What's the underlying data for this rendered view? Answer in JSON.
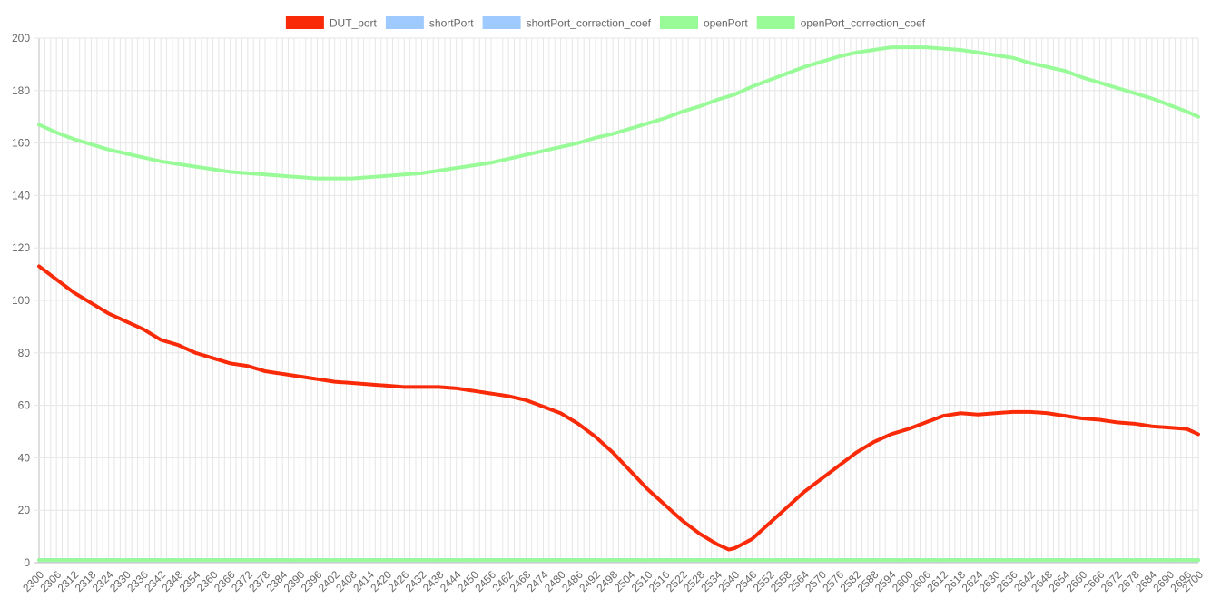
{
  "chart_data": {
    "type": "line",
    "x": {
      "start": 2300,
      "end": 2700,
      "step": 1,
      "tick_step": 6
    },
    "ylim": [
      0,
      200
    ],
    "y_ticks": [
      0,
      20,
      40,
      60,
      80,
      100,
      120,
      140,
      160,
      180,
      200
    ],
    "grid": true,
    "legend_position": "top",
    "series": [
      {
        "name": "DUT_port",
        "color": "#f92a07",
        "knots": [
          [
            2300,
            113
          ],
          [
            2306,
            108
          ],
          [
            2312,
            103
          ],
          [
            2318,
            99
          ],
          [
            2324,
            95
          ],
          [
            2330,
            92
          ],
          [
            2336,
            89
          ],
          [
            2342,
            85
          ],
          [
            2348,
            83
          ],
          [
            2354,
            80
          ],
          [
            2360,
            78
          ],
          [
            2366,
            76
          ],
          [
            2372,
            75
          ],
          [
            2378,
            73
          ],
          [
            2384,
            72
          ],
          [
            2390,
            71
          ],
          [
            2396,
            70
          ],
          [
            2402,
            69
          ],
          [
            2408,
            68.5
          ],
          [
            2414,
            68
          ],
          [
            2420,
            67.5
          ],
          [
            2426,
            67
          ],
          [
            2432,
            67
          ],
          [
            2438,
            67
          ],
          [
            2444,
            66.5
          ],
          [
            2450,
            65.5
          ],
          [
            2456,
            64.5
          ],
          [
            2462,
            63.5
          ],
          [
            2468,
            62
          ],
          [
            2474,
            59.5
          ],
          [
            2480,
            57
          ],
          [
            2486,
            53
          ],
          [
            2492,
            48
          ],
          [
            2498,
            42
          ],
          [
            2504,
            35
          ],
          [
            2510,
            28
          ],
          [
            2516,
            22
          ],
          [
            2522,
            16
          ],
          [
            2528,
            11
          ],
          [
            2534,
            7
          ],
          [
            2538,
            5
          ],
          [
            2540,
            5.5
          ],
          [
            2546,
            9
          ],
          [
            2552,
            15
          ],
          [
            2558,
            21
          ],
          [
            2564,
            27
          ],
          [
            2570,
            32
          ],
          [
            2576,
            37
          ],
          [
            2582,
            42
          ],
          [
            2588,
            46
          ],
          [
            2594,
            49
          ],
          [
            2600,
            51
          ],
          [
            2606,
            53.5
          ],
          [
            2612,
            56
          ],
          [
            2618,
            57
          ],
          [
            2624,
            56.5
          ],
          [
            2630,
            57
          ],
          [
            2636,
            57.5
          ],
          [
            2642,
            57.5
          ],
          [
            2648,
            57
          ],
          [
            2654,
            56
          ],
          [
            2660,
            55
          ],
          [
            2666,
            54.5
          ],
          [
            2672,
            53.5
          ],
          [
            2678,
            53
          ],
          [
            2684,
            52
          ],
          [
            2690,
            51.5
          ],
          [
            2696,
            51
          ],
          [
            2700,
            49
          ]
        ]
      },
      {
        "name": "shortPort",
        "color": "#9ecaff",
        "constant": 1
      },
      {
        "name": "shortPort_correction_coef",
        "color": "#9ecaff",
        "constant": 1
      },
      {
        "name": "openPort",
        "color": "#98fb98",
        "knots": [
          [
            2300,
            167
          ],
          [
            2306,
            164
          ],
          [
            2312,
            161.5
          ],
          [
            2318,
            159.5
          ],
          [
            2324,
            157.5
          ],
          [
            2330,
            156
          ],
          [
            2336,
            154.5
          ],
          [
            2342,
            153
          ],
          [
            2348,
            152
          ],
          [
            2354,
            151
          ],
          [
            2360,
            150
          ],
          [
            2366,
            149
          ],
          [
            2372,
            148.5
          ],
          [
            2378,
            148
          ],
          [
            2384,
            147.5
          ],
          [
            2390,
            147
          ],
          [
            2396,
            146.5
          ],
          [
            2402,
            146.5
          ],
          [
            2408,
            146.5
          ],
          [
            2414,
            147
          ],
          [
            2420,
            147.5
          ],
          [
            2426,
            148
          ],
          [
            2432,
            148.5
          ],
          [
            2438,
            149.5
          ],
          [
            2444,
            150.5
          ],
          [
            2450,
            151.5
          ],
          [
            2456,
            152.5
          ],
          [
            2462,
            154
          ],
          [
            2468,
            155.5
          ],
          [
            2474,
            157
          ],
          [
            2480,
            158.5
          ],
          [
            2486,
            160
          ],
          [
            2492,
            162
          ],
          [
            2498,
            163.5
          ],
          [
            2504,
            165.5
          ],
          [
            2510,
            167.5
          ],
          [
            2516,
            169.5
          ],
          [
            2522,
            172
          ],
          [
            2528,
            174
          ],
          [
            2534,
            176.5
          ],
          [
            2540,
            178.5
          ],
          [
            2546,
            181.5
          ],
          [
            2552,
            184
          ],
          [
            2558,
            186.5
          ],
          [
            2564,
            189
          ],
          [
            2570,
            191
          ],
          [
            2576,
            193
          ],
          [
            2582,
            194.5
          ],
          [
            2588,
            195.5
          ],
          [
            2594,
            196.5
          ],
          [
            2600,
            196.5
          ],
          [
            2606,
            196.5
          ],
          [
            2612,
            196
          ],
          [
            2618,
            195.5
          ],
          [
            2624,
            194.5
          ],
          [
            2630,
            193.5
          ],
          [
            2636,
            192.5
          ],
          [
            2642,
            190.5
          ],
          [
            2648,
            189
          ],
          [
            2654,
            187.5
          ],
          [
            2660,
            185
          ],
          [
            2666,
            183
          ],
          [
            2672,
            181
          ],
          [
            2678,
            179
          ],
          [
            2684,
            177
          ],
          [
            2690,
            174.5
          ],
          [
            2696,
            172
          ],
          [
            2700,
            170
          ]
        ]
      },
      {
        "name": "openPort_correction_coef",
        "color": "#98fb98",
        "constant": 1
      }
    ]
  }
}
